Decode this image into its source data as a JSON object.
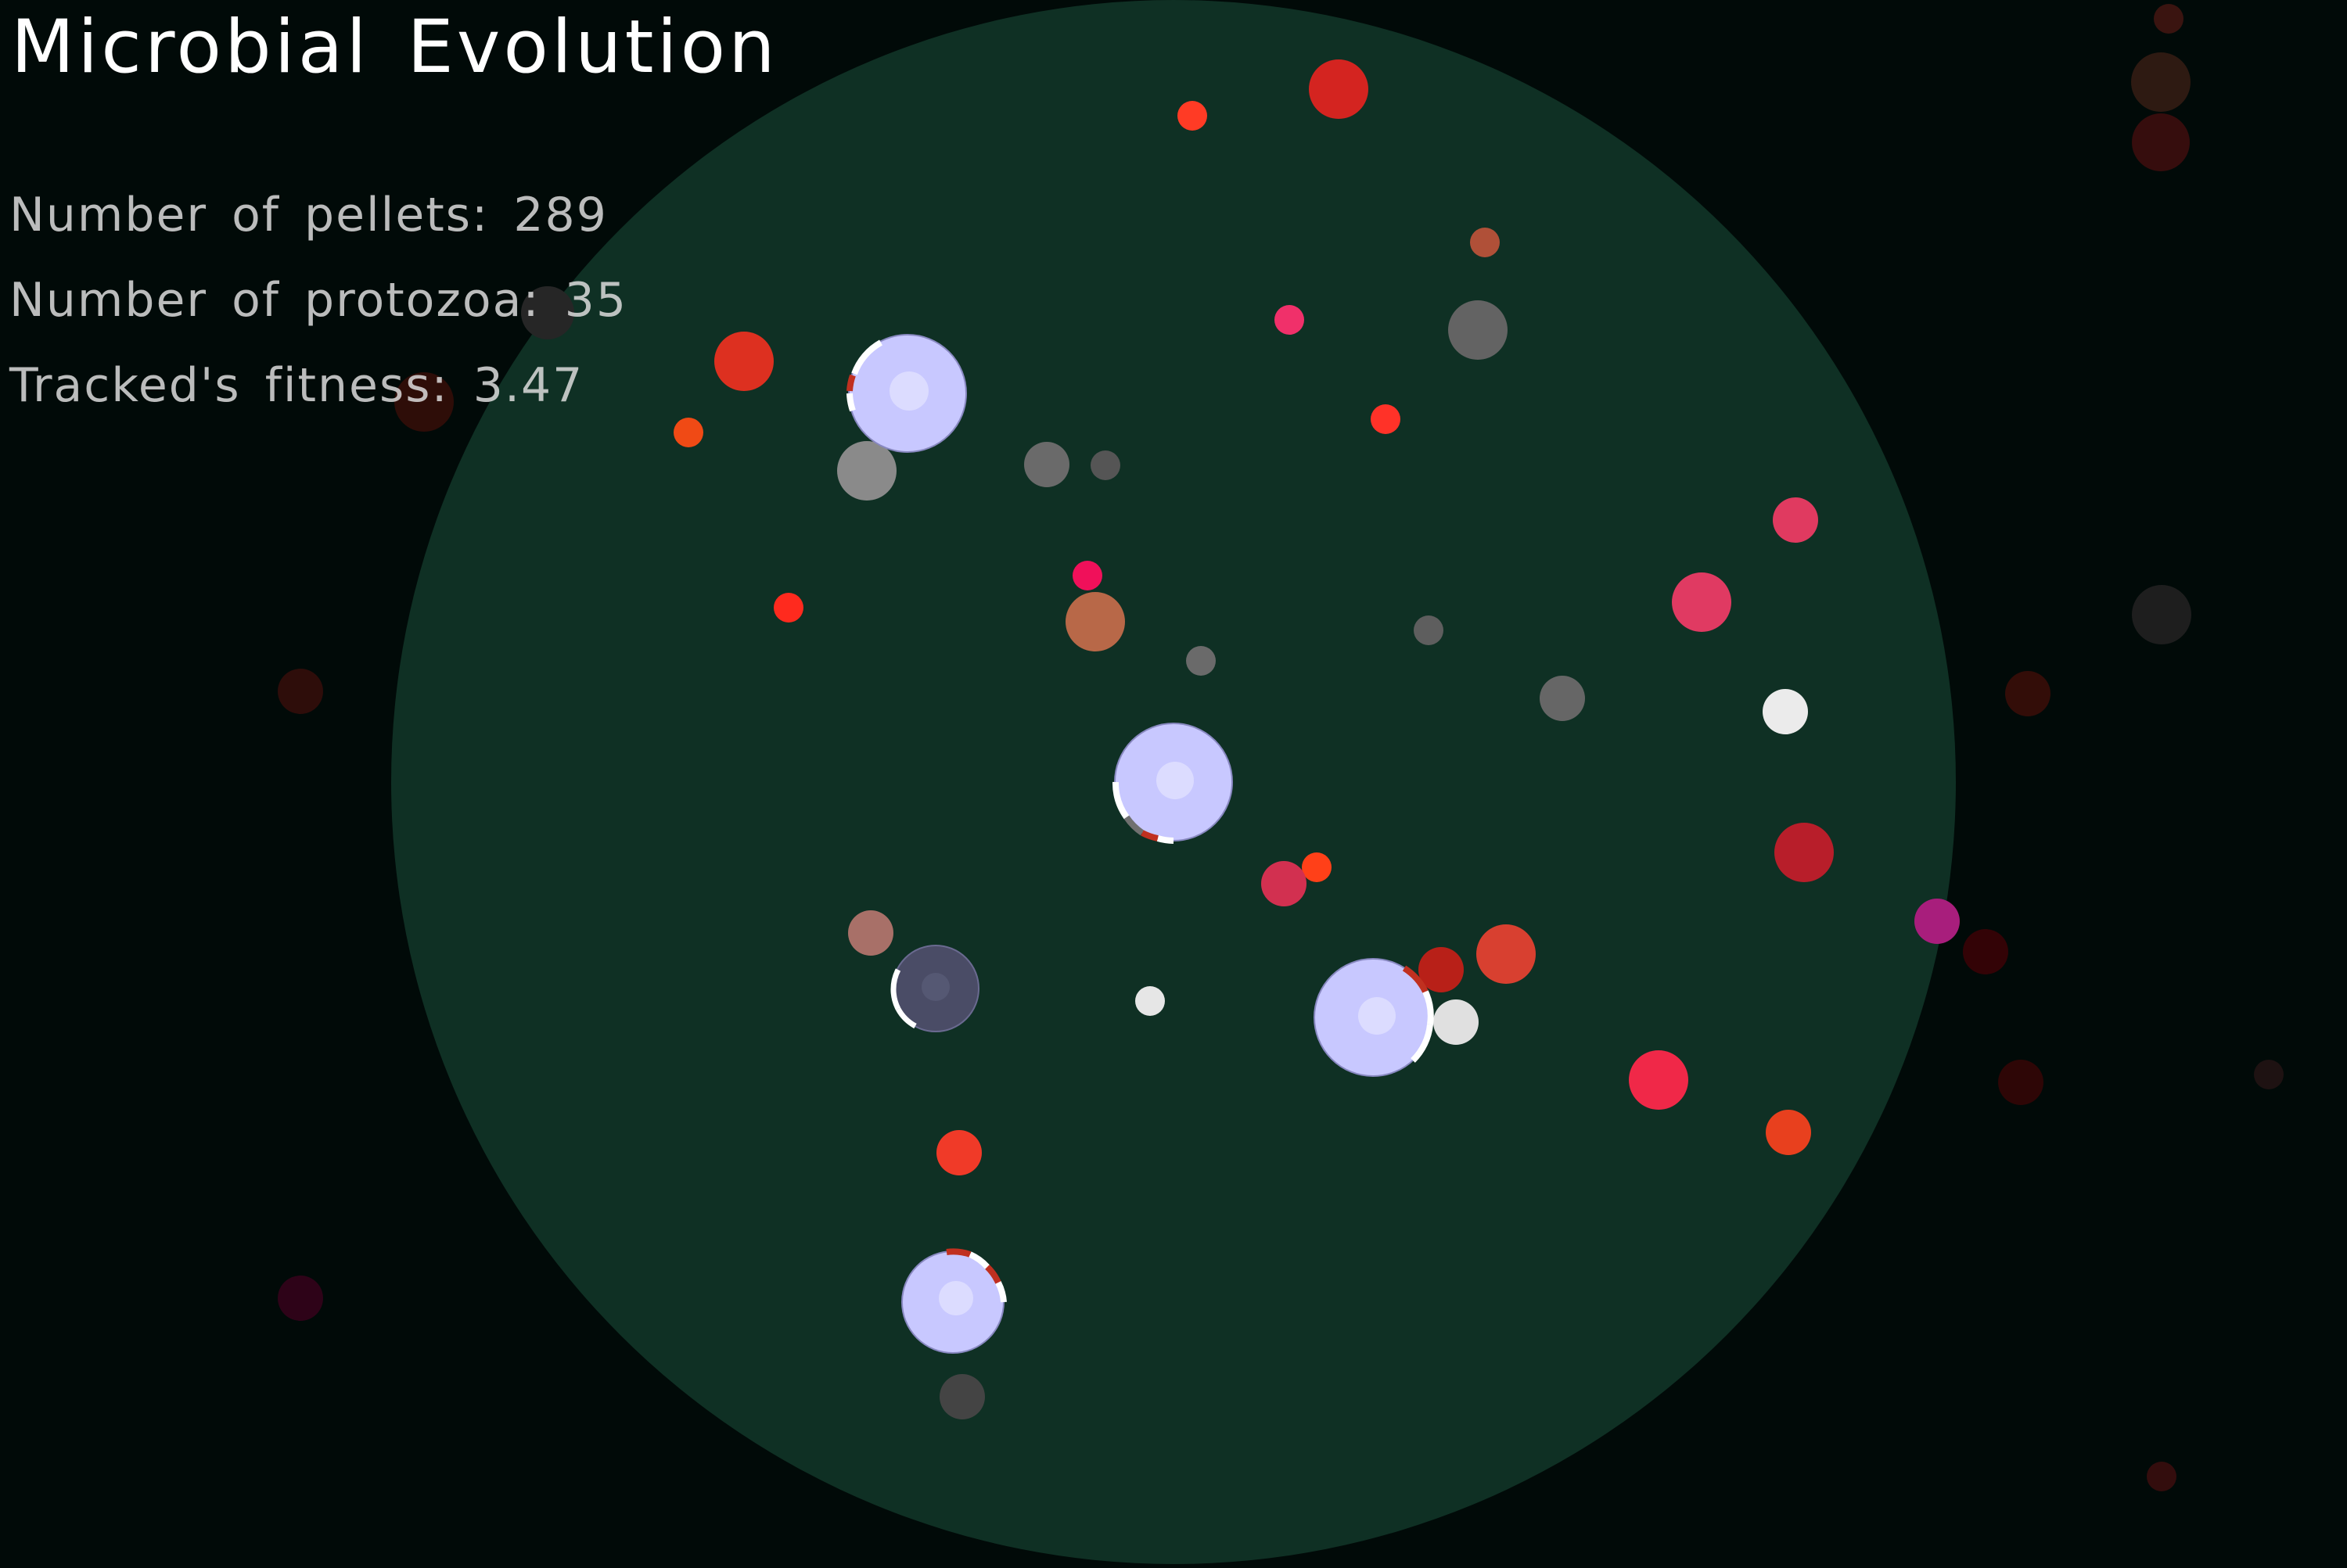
{
  "title": "Microbial Evolution",
  "stats": {
    "pellets_label": "Number of pellets:",
    "pellets_value": "289",
    "protozoa_label": "Number of protozoa:",
    "protozoa_value": "35",
    "fitness_label": "Tracked's fitness:",
    "fitness_value": "3.47"
  },
  "colors": {
    "background": "#010a08",
    "arena": "#0f3024",
    "protozoa_body": "#c8c8ff",
    "protozoa_body_dim": "#4a4c66",
    "pellet_red": "#ff3b1f",
    "pellet_pink": "#e83a60",
    "pellet_grey": "#7a7a7a",
    "pellet_white": "#e8e8e8"
  }
}
